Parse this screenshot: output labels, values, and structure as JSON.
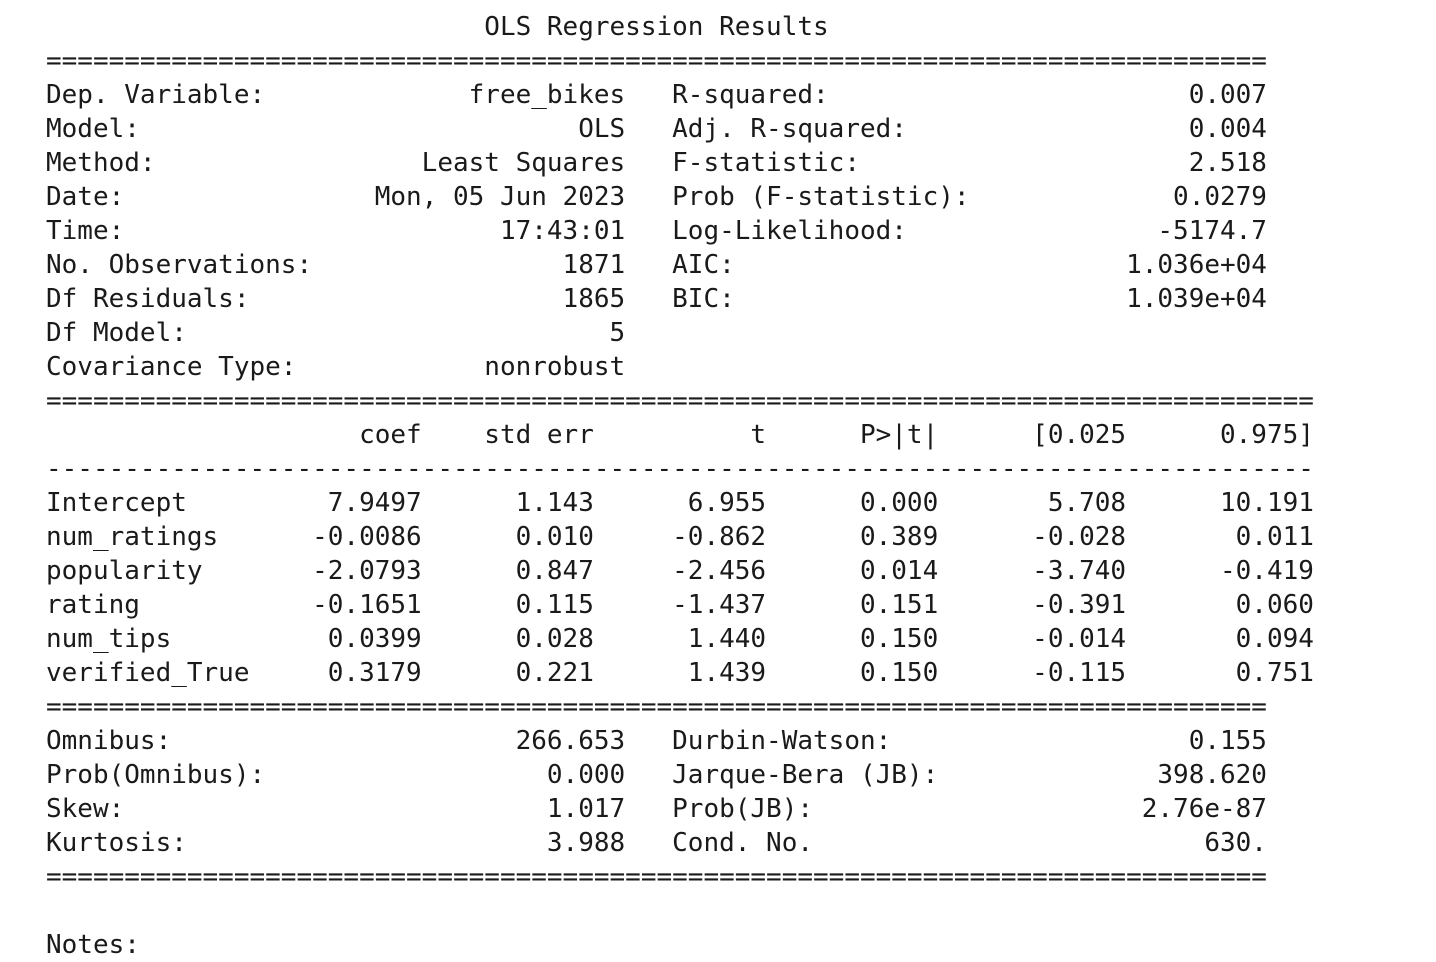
{
  "title": "OLS Regression Results",
  "summary": [
    {
      "left_label": "Dep. Variable:",
      "left_value": "free_bikes",
      "right_label": "R-squared:",
      "right_value": "0.007"
    },
    {
      "left_label": "Model:",
      "left_value": "OLS",
      "right_label": "Adj. R-squared:",
      "right_value": "0.004"
    },
    {
      "left_label": "Method:",
      "left_value": "Least Squares",
      "right_label": "F-statistic:",
      "right_value": "2.518"
    },
    {
      "left_label": "Date:",
      "left_value": "Mon, 05 Jun 2023",
      "right_label": "Prob (F-statistic):",
      "right_value": "0.0279"
    },
    {
      "left_label": "Time:",
      "left_value": "17:43:01",
      "right_label": "Log-Likelihood:",
      "right_value": "-5174.7"
    },
    {
      "left_label": "No. Observations:",
      "left_value": "1871",
      "right_label": "AIC:",
      "right_value": "1.036e+04"
    },
    {
      "left_label": "Df Residuals:",
      "left_value": "1865",
      "right_label": "BIC:",
      "right_value": "1.039e+04"
    },
    {
      "left_label": "Df Model:",
      "left_value": "5",
      "right_label": "",
      "right_value": ""
    },
    {
      "left_label": "Covariance Type:",
      "left_value": "nonrobust",
      "right_label": "",
      "right_value": ""
    }
  ],
  "coef_table": {
    "headers": [
      "",
      "coef",
      "std err",
      "t",
      "P>|t|",
      "[0.025",
      "0.975]"
    ],
    "rows": [
      [
        "Intercept",
        "7.9497",
        "1.143",
        "6.955",
        "0.000",
        "5.708",
        "10.191"
      ],
      [
        "num_ratings",
        "-0.0086",
        "0.010",
        "-0.862",
        "0.389",
        "-0.028",
        "0.011"
      ],
      [
        "popularity",
        "-2.0793",
        "0.847",
        "-2.456",
        "0.014",
        "-3.740",
        "-0.419"
      ],
      [
        "rating",
        "-0.1651",
        "0.115",
        "-1.437",
        "0.151",
        "-0.391",
        "0.060"
      ],
      [
        "num_tips",
        "0.0399",
        "0.028",
        "1.440",
        "0.150",
        "-0.014",
        "0.094"
      ],
      [
        "verified_True",
        "0.3179",
        "0.221",
        "1.439",
        "0.150",
        "-0.115",
        "0.751"
      ]
    ]
  },
  "diagnostics": [
    {
      "left_label": "Omnibus:",
      "left_value": "266.653",
      "right_label": "Durbin-Watson:",
      "right_value": "0.155"
    },
    {
      "left_label": "Prob(Omnibus):",
      "left_value": "0.000",
      "right_label": "Jarque-Bera (JB):",
      "right_value": "398.620"
    },
    {
      "left_label": "Skew:",
      "left_value": "1.017",
      "right_label": "Prob(JB):",
      "right_value": "2.76e-87"
    },
    {
      "left_label": "Kurtosis:",
      "left_value": "3.988",
      "right_label": "Cond. No.",
      "right_value": "630."
    }
  ],
  "notes_label": "Notes:"
}
